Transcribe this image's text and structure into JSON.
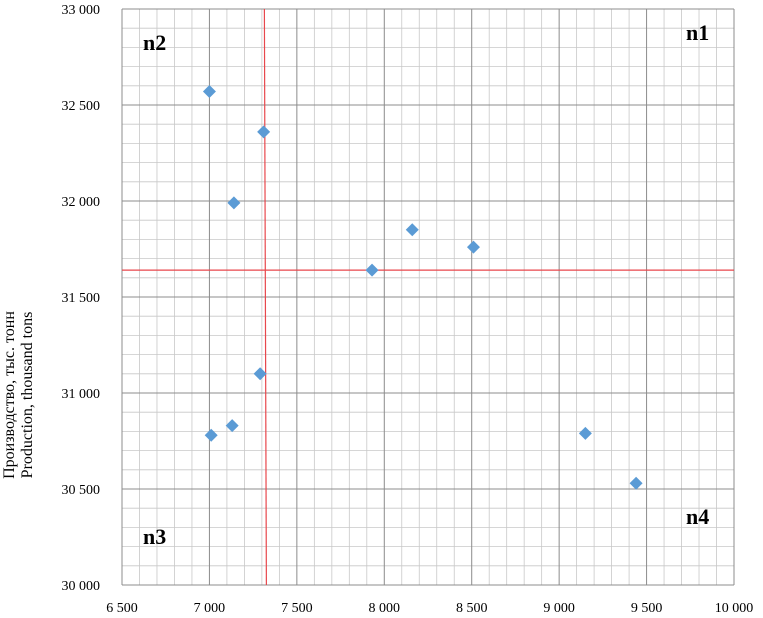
{
  "chart_data": {
    "type": "scatter",
    "title": "",
    "xlabel": "",
    "ylabel_lines": [
      "Производство, тыс. тонн",
      "Production, thousand tons"
    ],
    "xlim": [
      6500,
      10000
    ],
    "ylim": [
      30000,
      33000
    ],
    "x_major_step": 500,
    "x_minor_step": 100,
    "y_major_step": 500,
    "y_minor_step": 100,
    "grid": true,
    "x_tick_labels": [
      "6 500",
      "7 000",
      "7 500",
      "8 000",
      "8 500",
      "9 000",
      "9 500",
      "10 000"
    ],
    "y_tick_labels": [
      "30 000",
      "30 500",
      "31 000",
      "31 500",
      "32 000",
      "32 500",
      "33 000"
    ],
    "marker_color": "#5b9bd5",
    "reference_line_color": "#e8474c",
    "reference_lines": {
      "x": 7320,
      "y": 31640
    },
    "quadrant_labels": {
      "n1": "n1",
      "n2": "n2",
      "n3": "n3",
      "n4": "n4"
    },
    "series": [
      {
        "points": [
          {
            "x": 7000,
            "y": 32570
          },
          {
            "x": 7310,
            "y": 32360
          },
          {
            "x": 7140,
            "y": 31990
          },
          {
            "x": 7930,
            "y": 31640
          },
          {
            "x": 8160,
            "y": 31850
          },
          {
            "x": 8510,
            "y": 31760
          },
          {
            "x": 7290,
            "y": 31100
          },
          {
            "x": 7130,
            "y": 30830
          },
          {
            "x": 7010,
            "y": 30780
          },
          {
            "x": 9150,
            "y": 30790
          },
          {
            "x": 9440,
            "y": 30530
          }
        ]
      }
    ]
  }
}
